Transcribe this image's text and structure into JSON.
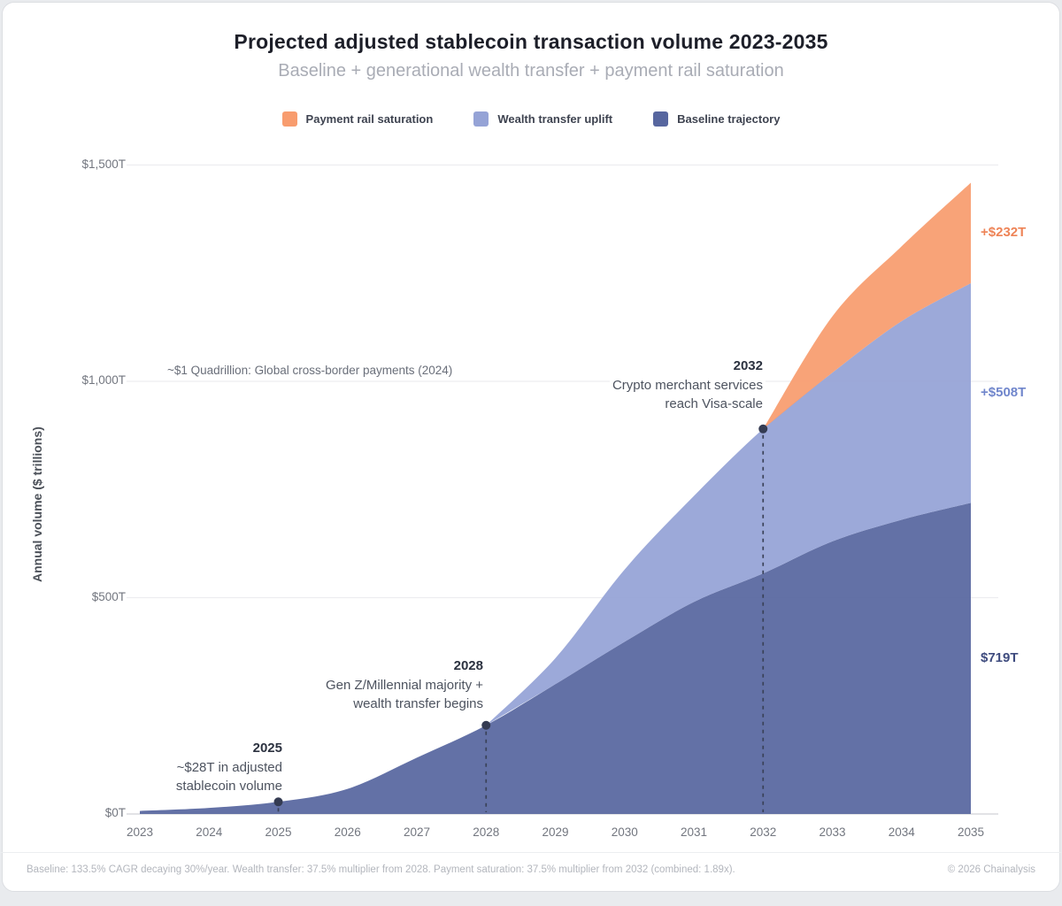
{
  "header": {
    "title": "Projected adjusted stablecoin transaction volume 2023-2035",
    "subtitle": "Baseline + generational wealth transfer + payment rail saturation"
  },
  "legend": [
    {
      "label": "Payment rail saturation",
      "color": "#f89c6e"
    },
    {
      "label": "Wealth transfer uplift",
      "color": "#95a3d6"
    },
    {
      "label": "Baseline trajectory",
      "color": "#57669f"
    }
  ],
  "chart_data": {
    "type": "area",
    "stacked": true,
    "title": "Projected adjusted stablecoin transaction volume 2023-2035",
    "xlabel": "",
    "ylabel": "Annual volume ($ trillions)",
    "ylim": [
      0,
      1500
    ],
    "grid": true,
    "legend_position": "top",
    "years": [
      2023,
      2024,
      2025,
      2026,
      2027,
      2028,
      2029,
      2030,
      2031,
      2032,
      2033,
      2034,
      2035
    ],
    "yticks": [
      {
        "value": 0,
        "label": "$0T"
      },
      {
        "value": 500,
        "label": "$500T"
      },
      {
        "value": 1000,
        "label": "$1,000T"
      },
      {
        "value": 1500,
        "label": "$1,500T"
      }
    ],
    "series": [
      {
        "name": "Baseline trajectory",
        "color": "#57669f",
        "values": [
          7,
          14,
          28,
          58,
          130,
          205,
          300,
          398,
          490,
          556,
          630,
          680,
          719
        ],
        "start_index": 0,
        "end_label": "$719T",
        "end_label_color": "#3e4b7e"
      },
      {
        "name": "Wealth transfer uplift",
        "color": "#95a3d6",
        "values": [
          0,
          0,
          0,
          0,
          0,
          0,
          60,
          167,
          245,
          334,
          390,
          459,
          508
        ],
        "start_index": 5,
        "end_label": "+$508T",
        "end_label_color": "#7086cc"
      },
      {
        "name": "Payment rail saturation",
        "color": "#f89c6e",
        "values": [
          0,
          0,
          0,
          0,
          0,
          0,
          0,
          0,
          0,
          0,
          130,
          173,
          232
        ],
        "start_index": 9,
        "end_label": "+$232T",
        "end_label_color": "#ee8457"
      }
    ],
    "reference_note": "~$1 Quadrillion: Global cross-border payments (2024)",
    "markers": [
      {
        "year": 2025,
        "total": 28,
        "title": "2025",
        "lines": [
          "~$28T in adjusted",
          "stablecoin volume"
        ]
      },
      {
        "year": 2028,
        "total": 205,
        "title": "2028",
        "lines": [
          "Gen Z/Millennial majority +",
          "wealth transfer begins"
        ]
      },
      {
        "year": 2032,
        "total": 890,
        "title": "2032",
        "lines": [
          "Crypto merchant services",
          "reach Visa-scale"
        ]
      }
    ]
  },
  "footer": {
    "left": "Baseline: 133.5% CAGR decaying 30%/year. Wealth transfer: 37.5% multiplier from 2028. Payment saturation: 37.5% multiplier from 2032 (combined: 1.89x).",
    "right": "© 2026 Chainalysis"
  }
}
